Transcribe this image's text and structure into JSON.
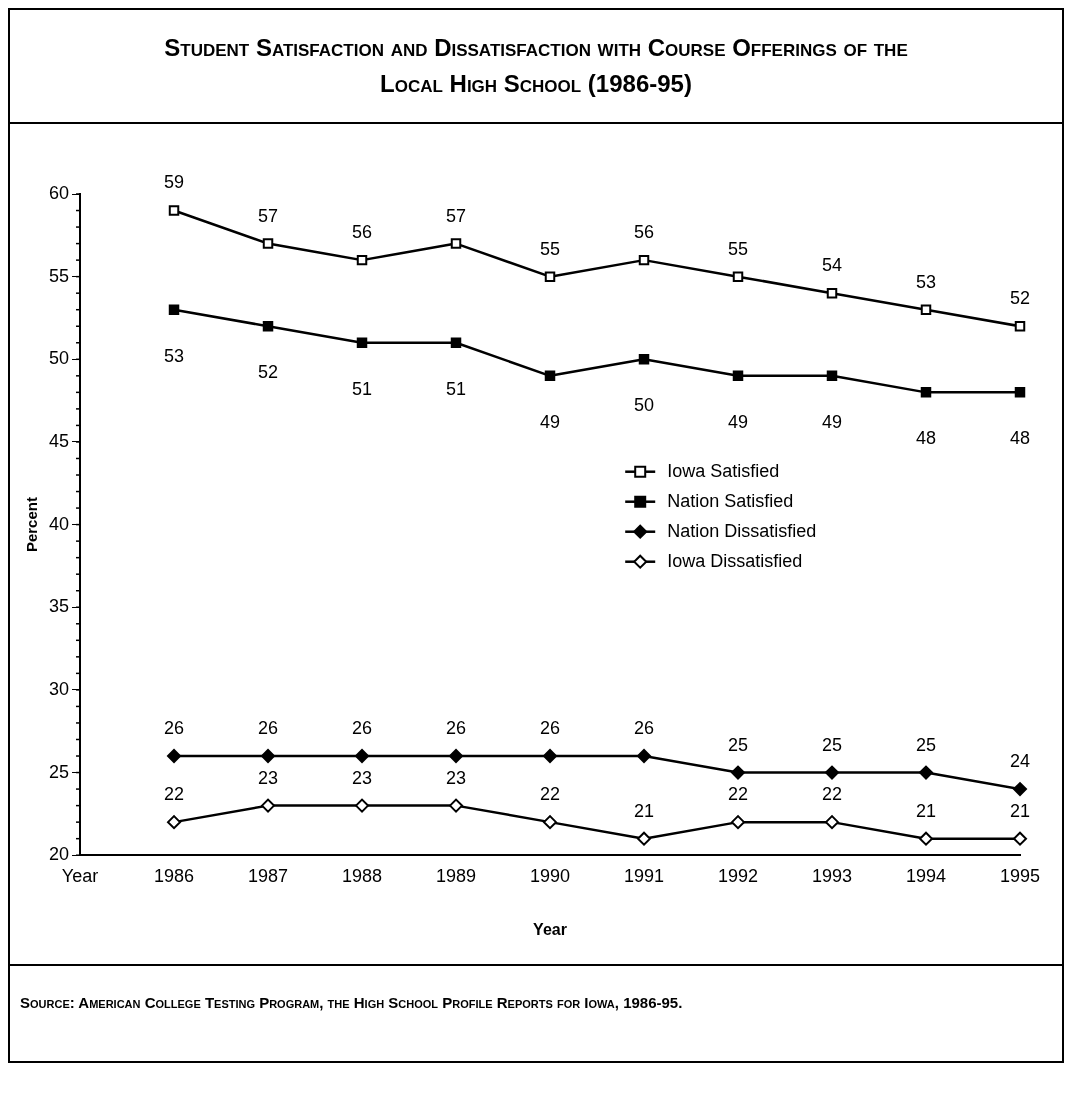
{
  "chart_data": {
    "type": "line",
    "title": "Student Satisfaction and Dissatisfaction with Course Offerings of the Local High School (1986-95)",
    "xlabel": "Year",
    "ylabel": "Percent",
    "categories": [
      "Year",
      "1986",
      "1987",
      "1988",
      "1989",
      "1990",
      "1991",
      "1992",
      "1993",
      "1994",
      "1995"
    ],
    "series": [
      {
        "name": "Iowa Satisfied",
        "color": "#000000",
        "marker": "square",
        "values": [
          null,
          59,
          57,
          56,
          57,
          55,
          56,
          55,
          54,
          53,
          52
        ]
      },
      {
        "name": "Nation Satisfied",
        "color": "#000000",
        "marker": "square",
        "values": [
          null,
          53,
          52,
          51,
          51,
          49,
          50,
          49,
          49,
          48,
          48
        ]
      },
      {
        "name": "Nation Dissatisfied",
        "color": "#000000",
        "marker": "diamond",
        "values": [
          null,
          26,
          26,
          26,
          26,
          26,
          26,
          25,
          25,
          25,
          24
        ]
      },
      {
        "name": "Iowa Dissatisfied",
        "color": "#000000",
        "marker": "diamond",
        "values": [
          null,
          22,
          23,
          23,
          23,
          22,
          21,
          22,
          22,
          21,
          21
        ]
      }
    ],
    "ylim": [
      20,
      60
    ],
    "yticks": [
      20,
      25,
      30,
      35,
      40,
      45,
      50,
      55,
      60
    ],
    "grid": false,
    "legend": "center",
    "data_labels": true,
    "line_style": "solid",
    "annotations": [
      "Source: American College Testing Program, the High School Profile Reports for Iowa, 1986-95."
    ]
  }
}
